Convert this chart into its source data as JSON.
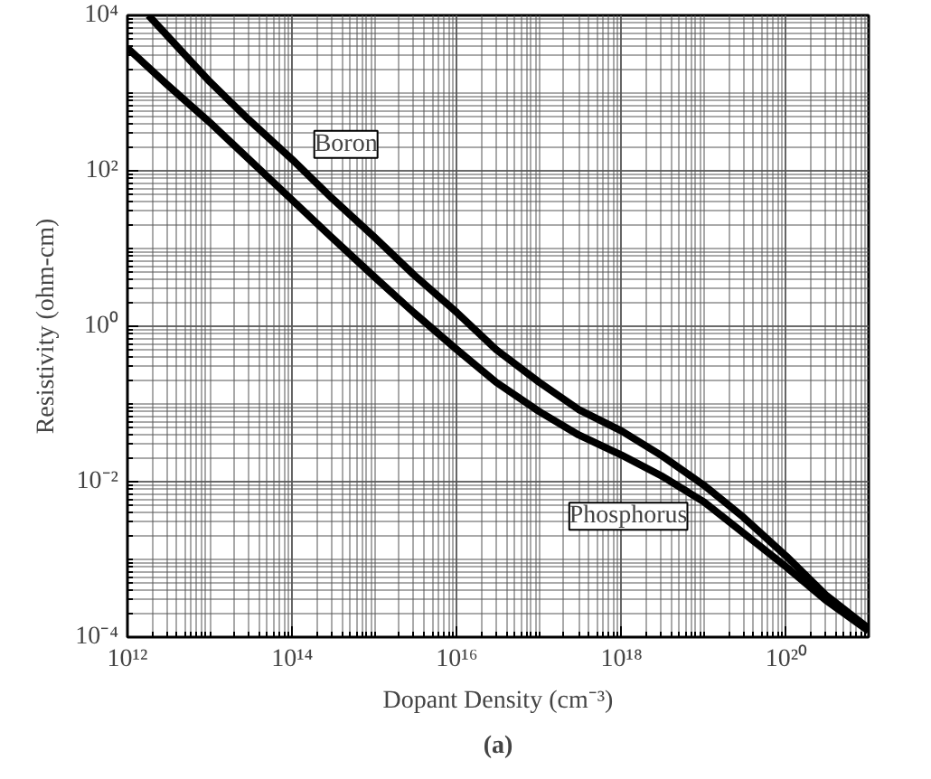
{
  "chart_data": {
    "type": "line",
    "xlabel": "Dopant Density (cm⁻³)",
    "ylabel": "Resistivity (ohm-cm)",
    "annotations": [
      "(a)"
    ],
    "log": "xy",
    "grid": true,
    "legend": false,
    "marker": "none",
    "line_style": "solid",
    "xlim": [
      1000000000000.0,
      1e+21
    ],
    "ylim": [
      0.0001,
      10000.0
    ],
    "xticks": [
      {
        "value": 1000000000000.0,
        "label": "10¹²"
      },
      {
        "value": 100000000000000.0,
        "label": "10¹⁴"
      },
      {
        "value": 1e+16,
        "label": "10¹⁶"
      },
      {
        "value": 1e+18,
        "label": "10¹⁸"
      },
      {
        "value": 1e+20,
        "label": "10²⁰"
      }
    ],
    "yticks": [
      {
        "value": 0.0001,
        "label": "10⁻⁴"
      },
      {
        "value": 0.01,
        "label": "10⁻²"
      },
      {
        "value": 1,
        "label": "10⁰"
      },
      {
        "value": 100,
        "label": "10²"
      },
      {
        "value": 10000.0,
        "label": "10⁴"
      }
    ],
    "series": [
      {
        "name": "Boron",
        "color": "#000000",
        "x": [
          1800000000000.0,
          10000000000000.0,
          30000000000000.0,
          100000000000000.0,
          300000000000000.0,
          1000000000000000.0,
          3000000000000000.0,
          1e+16,
          3e+16,
          1e+17,
          3e+17,
          1e+18,
          3e+18,
          1e+19,
          3e+19,
          1e+20,
          3e+20,
          1e+21
        ],
        "values": [
          10000.0,
          1400.0,
          450.0,
          140.0,
          45,
          14,
          4.6,
          1.5,
          0.5,
          0.19,
          0.085,
          0.045,
          0.022,
          0.009,
          0.0035,
          0.0011,
          0.00035,
          0.00013
        ]
      },
      {
        "name": "Phosphorus",
        "color": "#000000",
        "x": [
          1000000000000.0,
          3000000000000.0,
          10000000000000.0,
          30000000000000.0,
          100000000000000.0,
          300000000000000.0,
          1000000000000000.0,
          3000000000000000.0,
          1e+16,
          3e+16,
          1e+17,
          3e+17,
          1e+18,
          3e+18,
          1e+19,
          3e+19,
          1e+20,
          3e+20,
          1e+21
        ],
        "values": [
          3800.0,
          1300.0,
          420.0,
          140.0,
          42,
          14,
          4.3,
          1.5,
          0.5,
          0.19,
          0.08,
          0.04,
          0.022,
          0.012,
          0.0055,
          0.0022,
          0.0008,
          0.0003,
          0.00012
        ]
      }
    ]
  }
}
